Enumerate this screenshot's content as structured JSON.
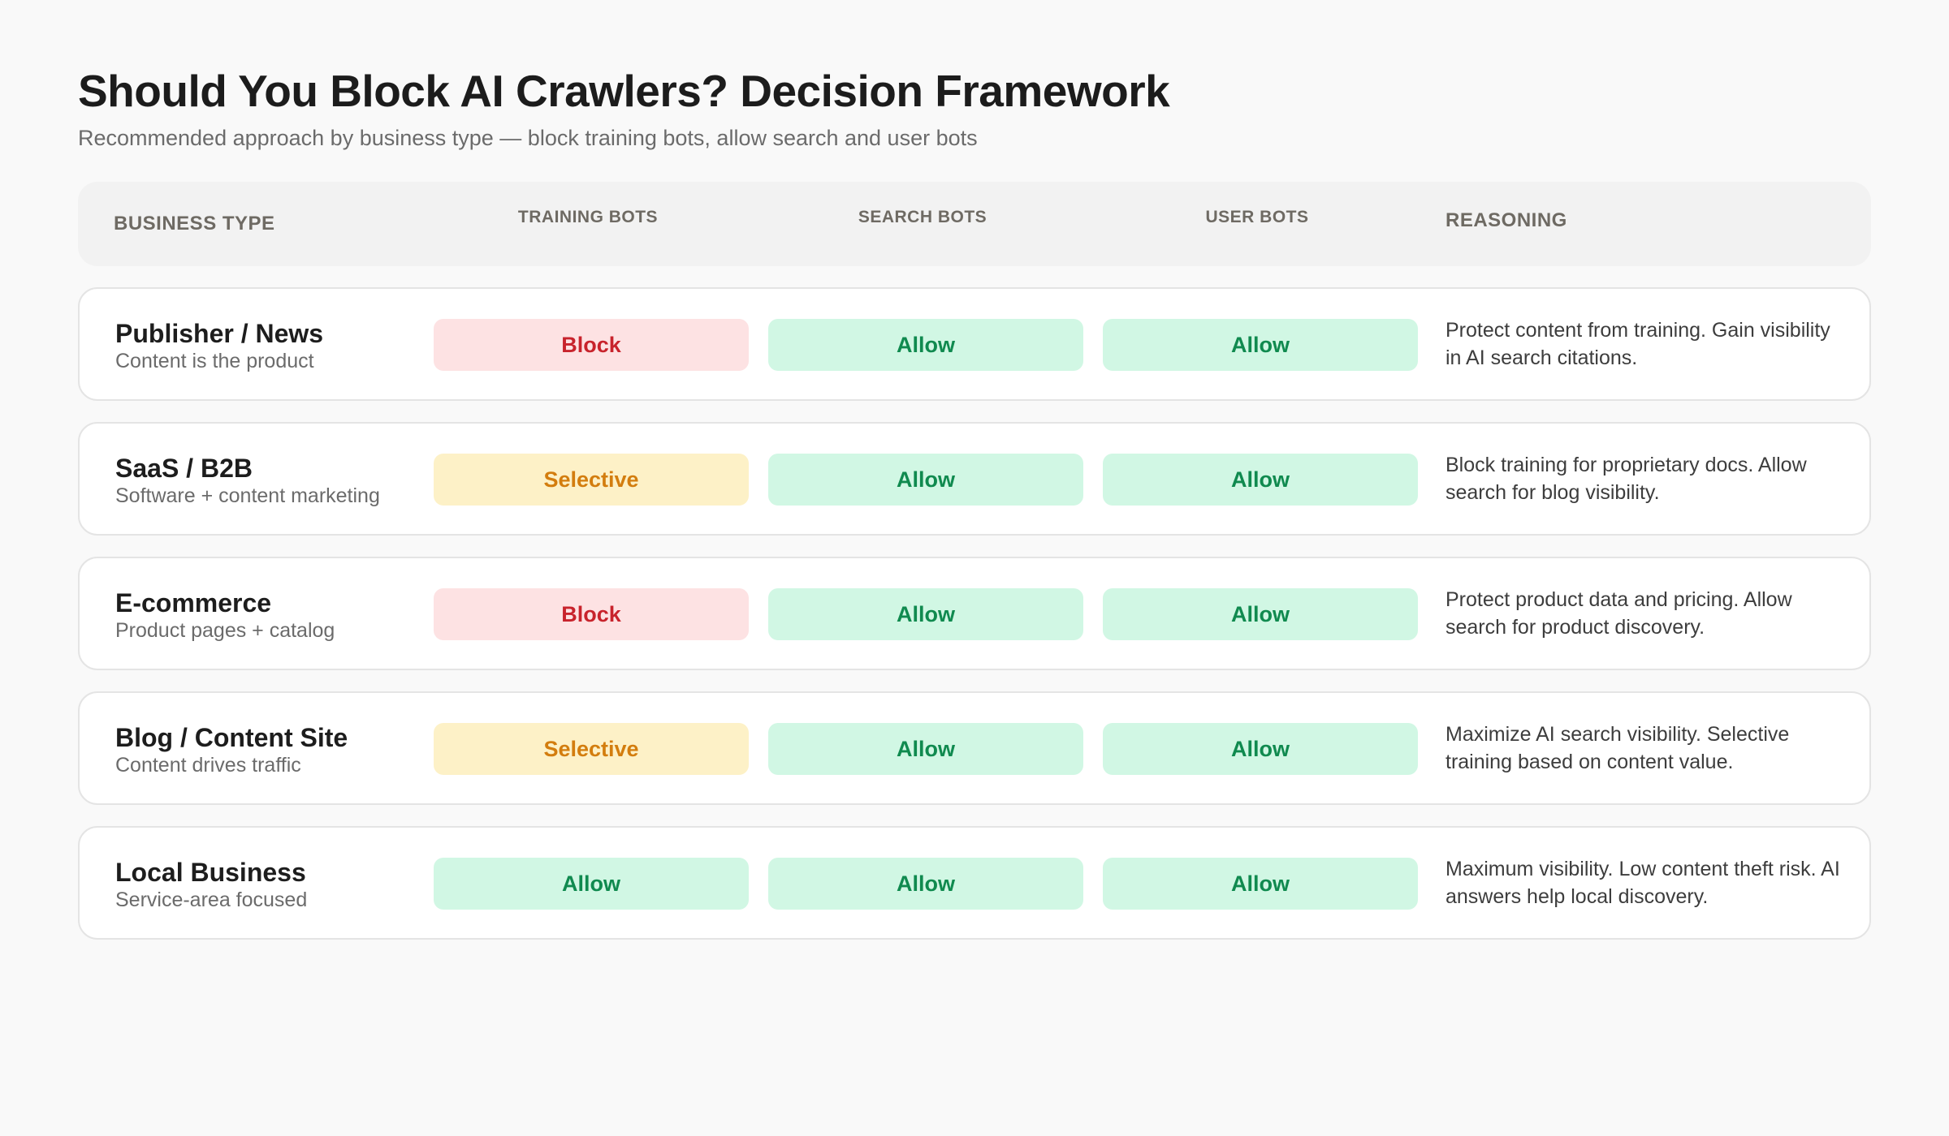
{
  "header": {
    "title": "Should You Block AI Crawlers? Decision Framework",
    "subtitle": "Recommended approach by business type — block training bots, allow search and user bots"
  },
  "columns": {
    "business_type": "BUSINESS TYPE",
    "training_bots": "TRAINING BOTS",
    "search_bots": "SEARCH BOTS",
    "user_bots": "USER BOTS",
    "reasoning": "REASONING"
  },
  "colors": {
    "block_bg": "#fde2e3",
    "block_text": "#c8232c",
    "allow_bg": "#d1f7e4",
    "allow_text": "#108a4f",
    "selective_bg": "#fdf1c7",
    "selective_text": "#d37d0e"
  },
  "rows": [
    {
      "name": "Publisher / News",
      "description": "Content is the product",
      "training": "Block",
      "search": "Allow",
      "user": "Allow",
      "reasoning": "Protect content from training. Gain visibility in AI search citations."
    },
    {
      "name": "SaaS / B2B",
      "description": "Software + content marketing",
      "training": "Selective",
      "search": "Allow",
      "user": "Allow",
      "reasoning": "Block training for proprietary docs. Allow search for blog visibility."
    },
    {
      "name": "E-commerce",
      "description": "Product pages + catalog",
      "training": "Block",
      "search": "Allow",
      "user": "Allow",
      "reasoning": "Protect product data and pricing. Allow search for product discovery."
    },
    {
      "name": "Blog / Content Site",
      "description": "Content drives traffic",
      "training": "Selective",
      "search": "Allow",
      "user": "Allow",
      "reasoning": "Maximize AI search visibility. Selective training based on content value."
    },
    {
      "name": "Local Business",
      "description": "Service-area focused",
      "training": "Allow",
      "search": "Allow",
      "user": "Allow",
      "reasoning": "Maximum visibility. Low content theft risk. AI answers help local discovery."
    }
  ]
}
